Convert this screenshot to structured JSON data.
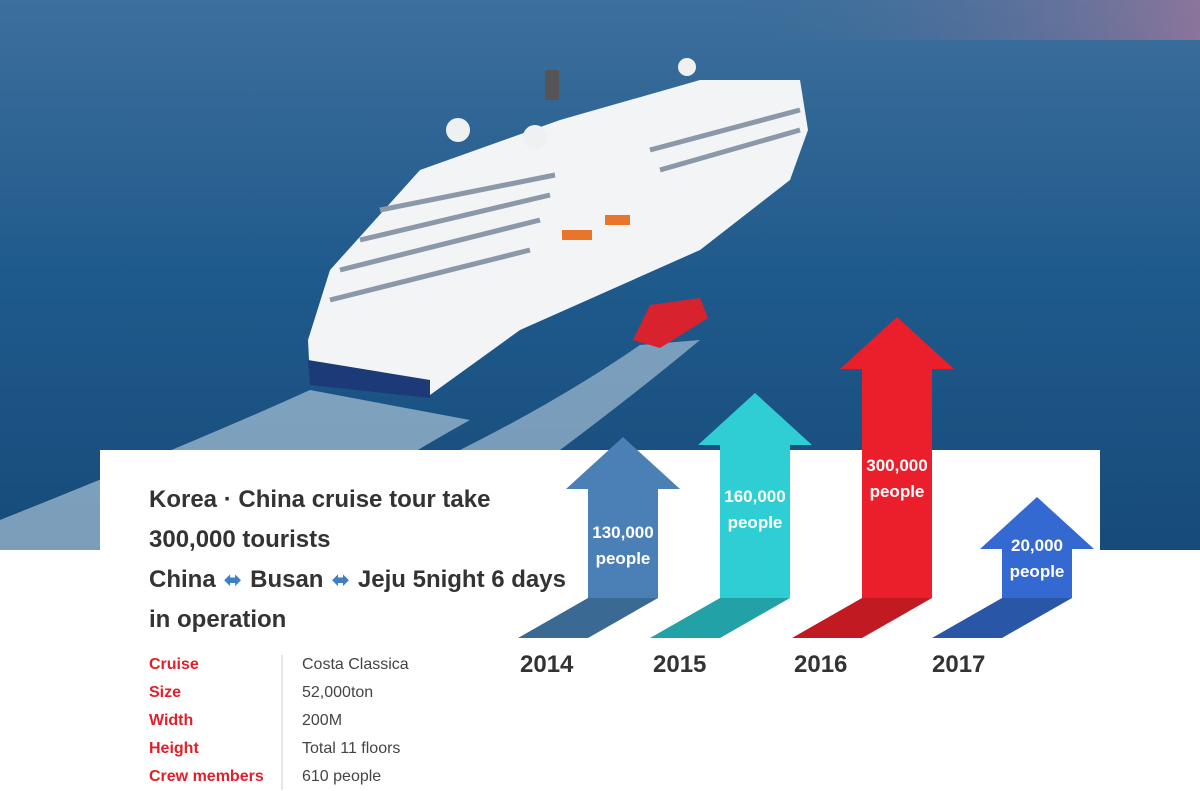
{
  "headline": {
    "lines": [
      "Korea · China cruise tour take",
      "300,000 tourists",
      [
        "China",
        "Busan",
        "Jeju 5night 6 days"
      ],
      "in operation"
    ]
  },
  "specs": [
    {
      "label": "Cruise",
      "value": "Costa Classica"
    },
    {
      "label": "Size",
      "value": "52,000ton"
    },
    {
      "label": "Width",
      "value": "200M"
    },
    {
      "label": "Height",
      "value": "Total 11 floors"
    },
    {
      "label": "Crew members",
      "value": "610 people"
    }
  ],
  "growth": [
    {
      "year": "2014",
      "amount": "130,000",
      "unit": "people",
      "color": "#4a80b6",
      "base_color": "#3a6994"
    },
    {
      "year": "2015",
      "amount": "160,000",
      "unit": "people",
      "color": "#2fcdd4",
      "base_color": "#22a2a7"
    },
    {
      "year": "2016",
      "amount": "300,000",
      "unit": "people",
      "color": "#ea1f2b",
      "base_color": "#c11a22"
    },
    {
      "year": "2017",
      "amount": "20,000",
      "unit": "people",
      "color": "#3569d2",
      "base_color": "#2a56a8"
    }
  ]
}
